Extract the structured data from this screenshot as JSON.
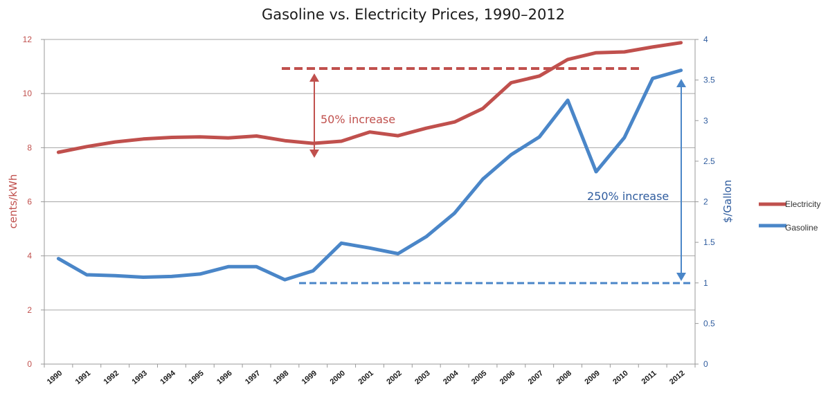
{
  "chart_data": {
    "type": "line",
    "title": "Gasoline vs. Electricity Prices, 1990–2012",
    "categories": [
      "1990",
      "1991",
      "1992",
      "1993",
      "1994",
      "1995",
      "1996",
      "1997",
      "1998",
      "1999",
      "2000",
      "2001",
      "2002",
      "2003",
      "2004",
      "2005",
      "2006",
      "2007",
      "2008",
      "2009",
      "2010",
      "2011",
      "2012"
    ],
    "y_left": {
      "label": "cents/kWh",
      "range": [
        0,
        12
      ],
      "ticks": [
        0,
        2,
        4,
        6,
        8,
        10,
        12
      ]
    },
    "y_right": {
      "label": "$/Gallon",
      "range": [
        0,
        4
      ],
      "ticks": [
        "0",
        "0.5",
        "1",
        "1.5",
        "2",
        "2.5",
        "3",
        "3.5",
        "4"
      ]
    },
    "grid": true,
    "legend_position": "right",
    "series": [
      {
        "name": "Electricity",
        "axis": "left",
        "color": "#c0504d",
        "values": [
          7.83,
          8.04,
          8.21,
          8.32,
          8.38,
          8.4,
          8.36,
          8.43,
          8.26,
          8.16,
          8.24,
          8.58,
          8.44,
          8.72,
          8.95,
          9.45,
          10.4,
          10.65,
          11.26,
          11.51,
          11.54,
          11.72,
          11.88
        ]
      },
      {
        "name": "Gasoline",
        "axis": "right",
        "color": "#4a86c8",
        "values": [
          1.3,
          1.1,
          1.09,
          1.07,
          1.08,
          1.11,
          1.2,
          1.2,
          1.04,
          1.15,
          1.49,
          1.43,
          1.36,
          1.57,
          1.86,
          2.28,
          2.58,
          2.8,
          3.25,
          2.37,
          2.79,
          3.52,
          3.62
        ]
      }
    ],
    "annotations": [
      {
        "text": "50% increase",
        "color": "#c0504d"
      },
      {
        "text": "250% increase",
        "color": "#2f5c9e"
      }
    ]
  }
}
